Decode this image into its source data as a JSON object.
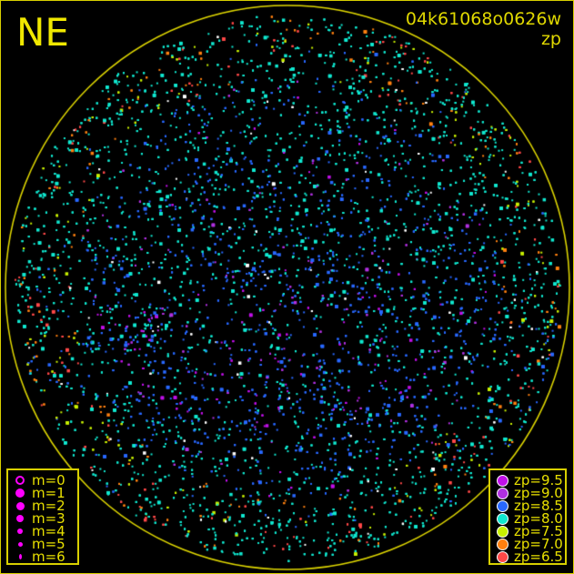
{
  "direction_label": "NE",
  "title": {
    "id": "04k61068o0626w",
    "mode": "zp"
  },
  "colors": {
    "frame": "#d8d000",
    "horizon": "#e0d800",
    "background": "#000000"
  },
  "magnitude_legend": [
    {
      "label": "m=0",
      "style": "ring"
    },
    {
      "label": "m=1",
      "style": "dot"
    },
    {
      "label": "m=2",
      "style": "dot"
    },
    {
      "label": "m=3",
      "style": "dot"
    },
    {
      "label": "m=4",
      "style": "dot"
    },
    {
      "label": "m=5",
      "style": "dot"
    },
    {
      "label": "m=6",
      "style": "dot"
    }
  ],
  "zp_legend": [
    {
      "label": "zp=9.5",
      "color": "#c010e8"
    },
    {
      "label": "zp=9.0",
      "color": "#b030e0"
    },
    {
      "label": "zp=8.5",
      "color": "#2868ff"
    },
    {
      "label": "zp=8.0",
      "color": "#10e8d0"
    },
    {
      "label": "zp=7.5",
      "color": "#c8f000"
    },
    {
      "label": "zp=7.0",
      "color": "#ff8010"
    },
    {
      "label": "zp=6.5",
      "color": "#ff4848"
    }
  ]
}
